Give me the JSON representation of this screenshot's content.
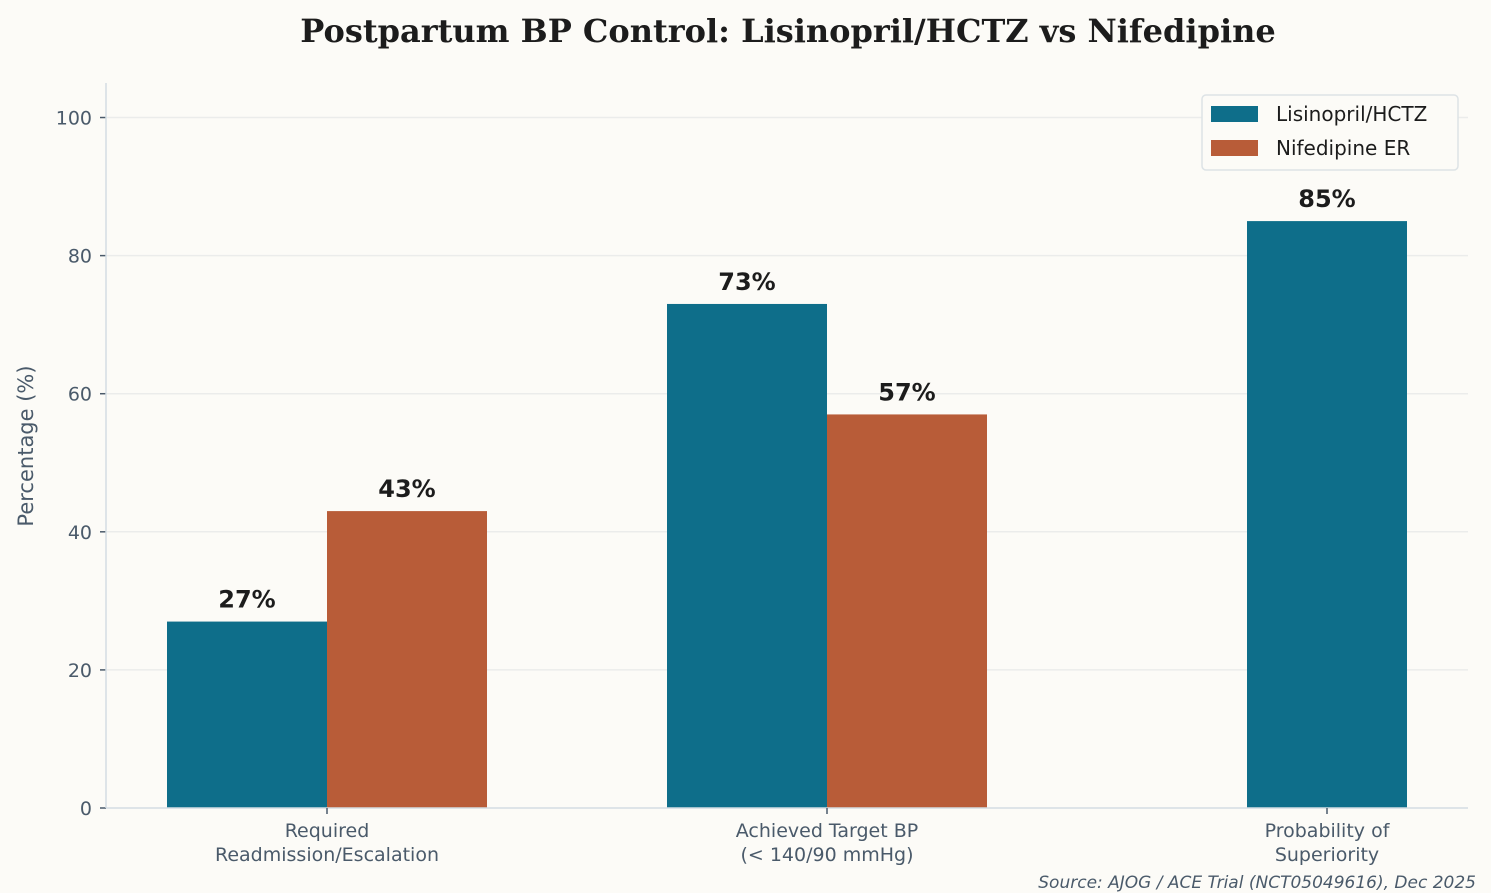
{
  "chart_data": {
    "type": "bar",
    "title": "Postpartum BP Control: Lisinopril/HCTZ vs Nifedipine",
    "xlabel": "",
    "ylabel": "Percentage (%)",
    "ylim": [
      0,
      105
    ],
    "yticks": [
      0,
      20,
      40,
      60,
      80,
      100
    ],
    "grid": true,
    "legend_position": "top-right",
    "categories": [
      [
        "Required",
        "Readmission/Escalation"
      ],
      [
        "Achieved Target BP",
        "(< 140/90 mmHg)"
      ],
      [
        "Probability of",
        "Superiority"
      ]
    ],
    "series": [
      {
        "name": "Lisinopril/HCTZ",
        "color": "#0e6e8a",
        "values": [
          27,
          73,
          85
        ],
        "labels": [
          "27%",
          "73%",
          "85%"
        ]
      },
      {
        "name": "Nifedipine ER",
        "color": "#b85c38",
        "values": [
          43,
          57,
          null
        ],
        "labels": [
          "43%",
          "57%",
          null
        ]
      }
    ],
    "source": "Source: AJOG / ACE Trial (NCT05049616), Dec 2025"
  }
}
